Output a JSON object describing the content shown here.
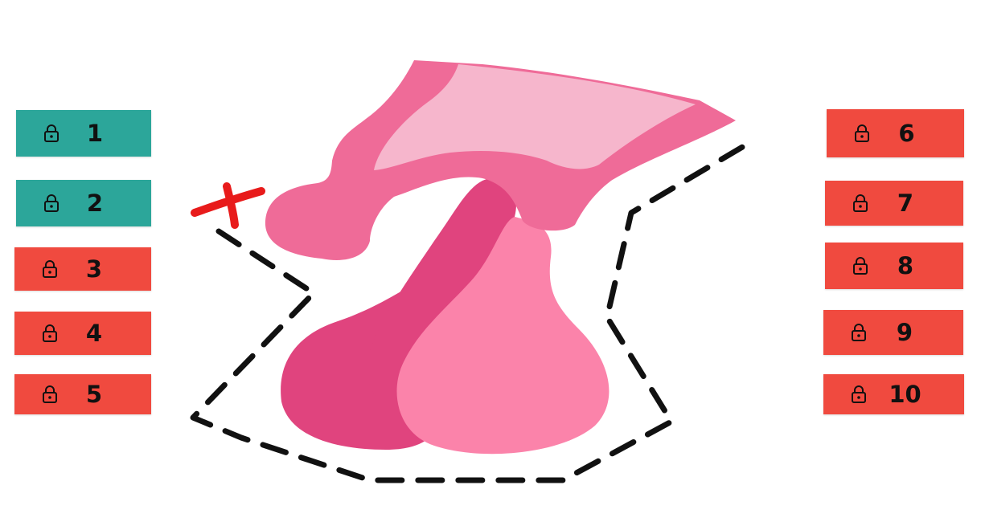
{
  "colors": {
    "unlocked": "#2ca69a",
    "locked": "#f04a3f",
    "shape_dark": "#e0447e",
    "shape_mid": "#ef6b98",
    "shape_light": "#f6b6cc",
    "shape_accent": "#fb83aa",
    "dash": "#111111",
    "marker": "#e81b1b"
  },
  "levels": [
    {
      "label": "1",
      "state": "unlocked",
      "icon": "lock-icon"
    },
    {
      "label": "2",
      "state": "unlocked",
      "icon": "lock-icon"
    },
    {
      "label": "3",
      "state": "locked",
      "icon": "lock-icon"
    },
    {
      "label": "4",
      "state": "locked",
      "icon": "lock-icon"
    },
    {
      "label": "5",
      "state": "locked",
      "icon": "lock-icon"
    },
    {
      "label": "6",
      "state": "locked",
      "icon": "lock-icon"
    },
    {
      "label": "7",
      "state": "locked",
      "icon": "lock-icon"
    },
    {
      "label": "8",
      "state": "locked",
      "icon": "lock-icon"
    },
    {
      "label": "9",
      "state": "locked",
      "icon": "lock-icon"
    },
    {
      "label": "10",
      "state": "locked",
      "icon": "lock-icon"
    }
  ],
  "puzzle": {
    "shape": "pink-organic-shape",
    "marker": "x-mark"
  }
}
